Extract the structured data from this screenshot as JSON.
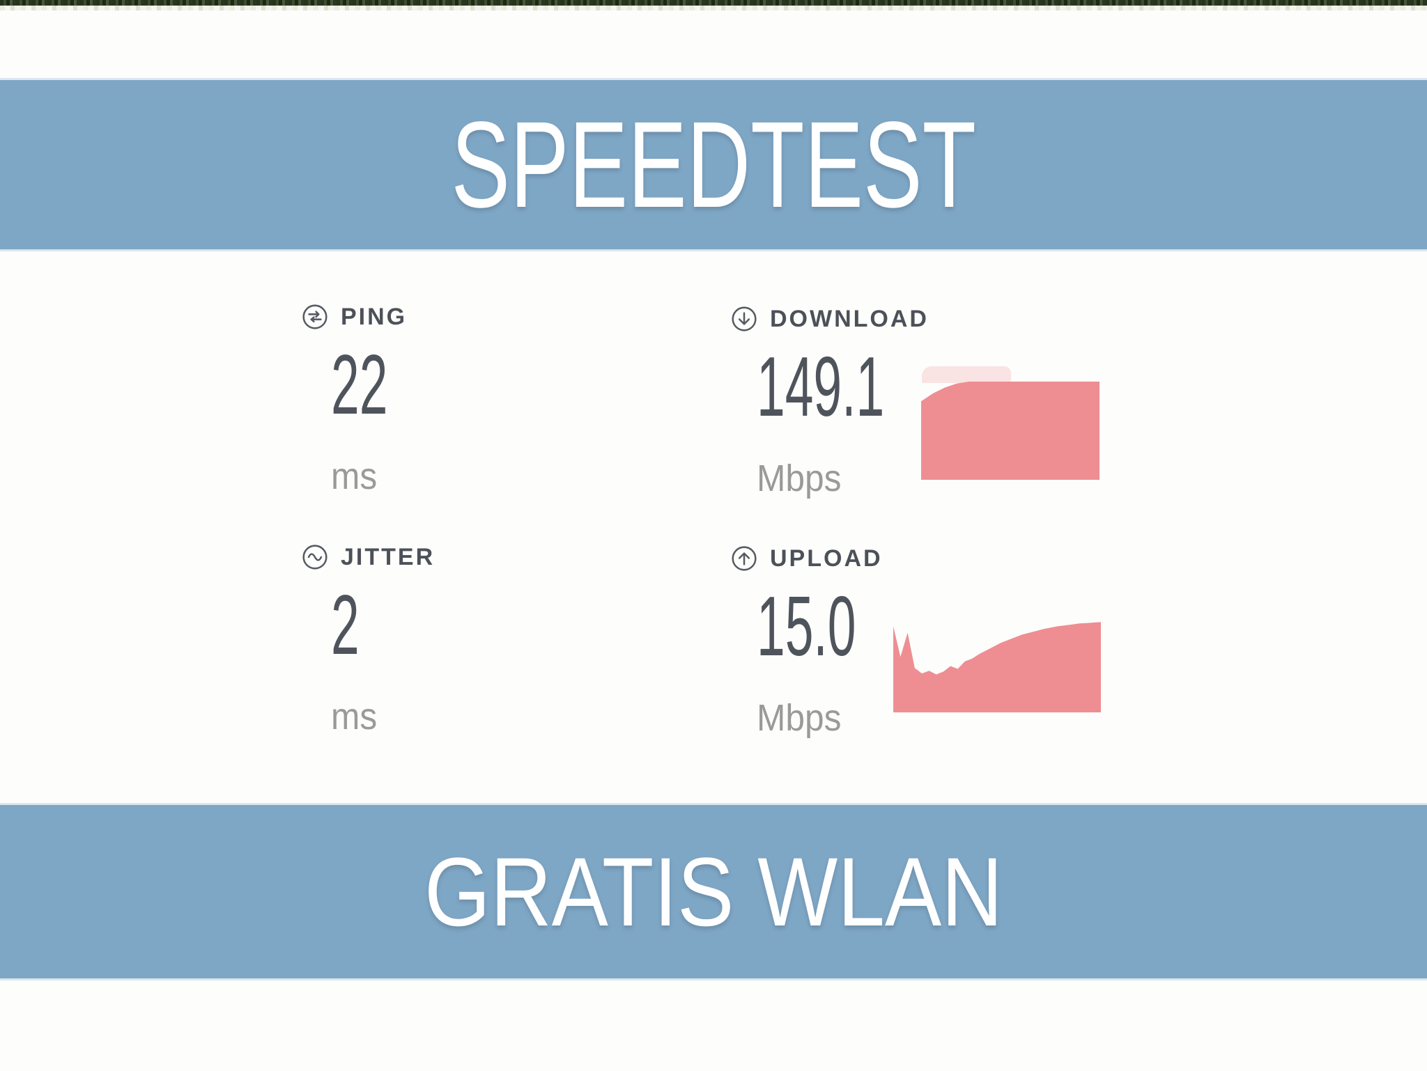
{
  "banners": {
    "top_title": "SPEEDTEST",
    "bottom_title": "GRATIS WLAN"
  },
  "metrics": {
    "ping": {
      "label": "PING",
      "value": "22",
      "unit": "ms",
      "icon": "ping-gauge-icon"
    },
    "download": {
      "label": "DOWNLOAD",
      "value": "149.1",
      "unit": "Mbps",
      "icon": "download-arrow-circle-icon"
    },
    "jitter": {
      "label": "JITTER",
      "value": "2",
      "unit": "ms",
      "icon": "jitter-wave-circle-icon"
    },
    "upload": {
      "label": "UPLOAD",
      "value": "15.0",
      "unit": "Mbps",
      "icon": "upload-arrow-circle-icon"
    }
  },
  "colors": {
    "banner_bg": "#7ea6c5",
    "banner_text": "#ffffff",
    "chart_fill": "#ee8e93",
    "label_text": "#4c5159",
    "value_text": "#4f545c",
    "unit_text": "#9a9a9a",
    "photo_strip": "#2e3b24"
  },
  "chart_data": [
    {
      "id": "download-sparkline",
      "type": "area",
      "metric": "DOWNLOAD",
      "unit": "Mbps",
      "final_value": 149.1,
      "fill": "#ee8e93",
      "normalized_heights": [
        0.8,
        0.88,
        0.94,
        0.98,
        1,
        1,
        1,
        1,
        1,
        1,
        1,
        1,
        1,
        1,
        1,
        1
      ]
    },
    {
      "id": "upload-sparkline",
      "type": "area",
      "metric": "UPLOAD",
      "unit": "Mbps",
      "final_value": 15.0,
      "fill": "#ee8e93",
      "normalized_heights": [
        0.93,
        0.6,
        0.86,
        0.48,
        0.42,
        0.45,
        0.41,
        0.44,
        0.5,
        0.47,
        0.55,
        0.58,
        0.63,
        0.67,
        0.71,
        0.75,
        0.78,
        0.81,
        0.84,
        0.86,
        0.88,
        0.9,
        0.915,
        0.93,
        0.94,
        0.95,
        0.96,
        0.965,
        0.97,
        0.975
      ]
    }
  ]
}
